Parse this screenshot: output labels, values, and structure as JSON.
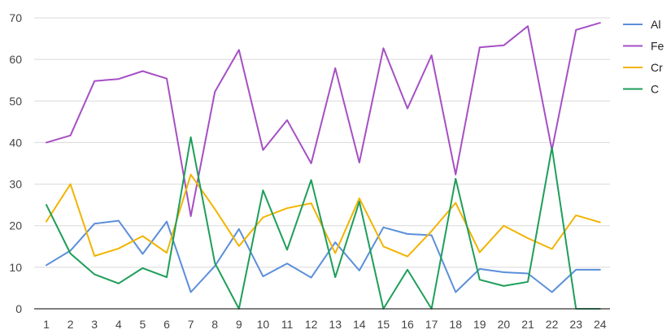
{
  "chart_data": {
    "type": "line",
    "x": [
      "1",
      "2",
      "3",
      "4",
      "5",
      "6",
      "7",
      "8",
      "9",
      "10",
      "11",
      "12",
      "13",
      "14",
      "15",
      "16",
      "17",
      "18",
      "19",
      "20",
      "21",
      "22",
      "23",
      "24"
    ],
    "ylim": [
      0,
      70
    ],
    "yticks": [
      0,
      10,
      20,
      30,
      40,
      50,
      60,
      70
    ],
    "grid": true,
    "legend_position": "right",
    "series": [
      {
        "name": "Al",
        "color": "#5b8fd9",
        "values": [
          10.5,
          14,
          20.5,
          21.2,
          13.2,
          21,
          4,
          10.3,
          19.2,
          7.8,
          10.9,
          7.5,
          16,
          9.2,
          19.6,
          18,
          17.7,
          4,
          9.6,
          8.8,
          8.5,
          4,
          9.4,
          9.4
        ]
      },
      {
        "name": "Fe",
        "color": "#a64fc4",
        "values": [
          40,
          41.7,
          54.8,
          55.3,
          57.2,
          55.4,
          22.3,
          52.2,
          62.3,
          38.2,
          45.4,
          35,
          57.9,
          35.2,
          62.7,
          48.2,
          61,
          32.3,
          62.9,
          63.4,
          68,
          38.2,
          67.1,
          68.8
        ]
      },
      {
        "name": "Cr",
        "color": "#f2b400",
        "values": [
          21,
          30,
          12.7,
          14.5,
          17.5,
          13.5,
          32.3,
          24,
          15.1,
          22,
          24.2,
          25.4,
          13.4,
          26.6,
          15,
          12.6,
          18.7,
          25.5,
          13.6,
          20,
          17,
          14.4,
          22.5,
          20.8
        ]
      },
      {
        "name": "C",
        "color": "#1e9e5a",
        "values": [
          25,
          13.3,
          8.3,
          6.1,
          9.8,
          7.6,
          41.3,
          11,
          0,
          28.5,
          14.2,
          31,
          7.6,
          25.8,
          0,
          9.4,
          0,
          31.3,
          7,
          5.5,
          6.5,
          38.8,
          0,
          0
        ]
      }
    ]
  }
}
